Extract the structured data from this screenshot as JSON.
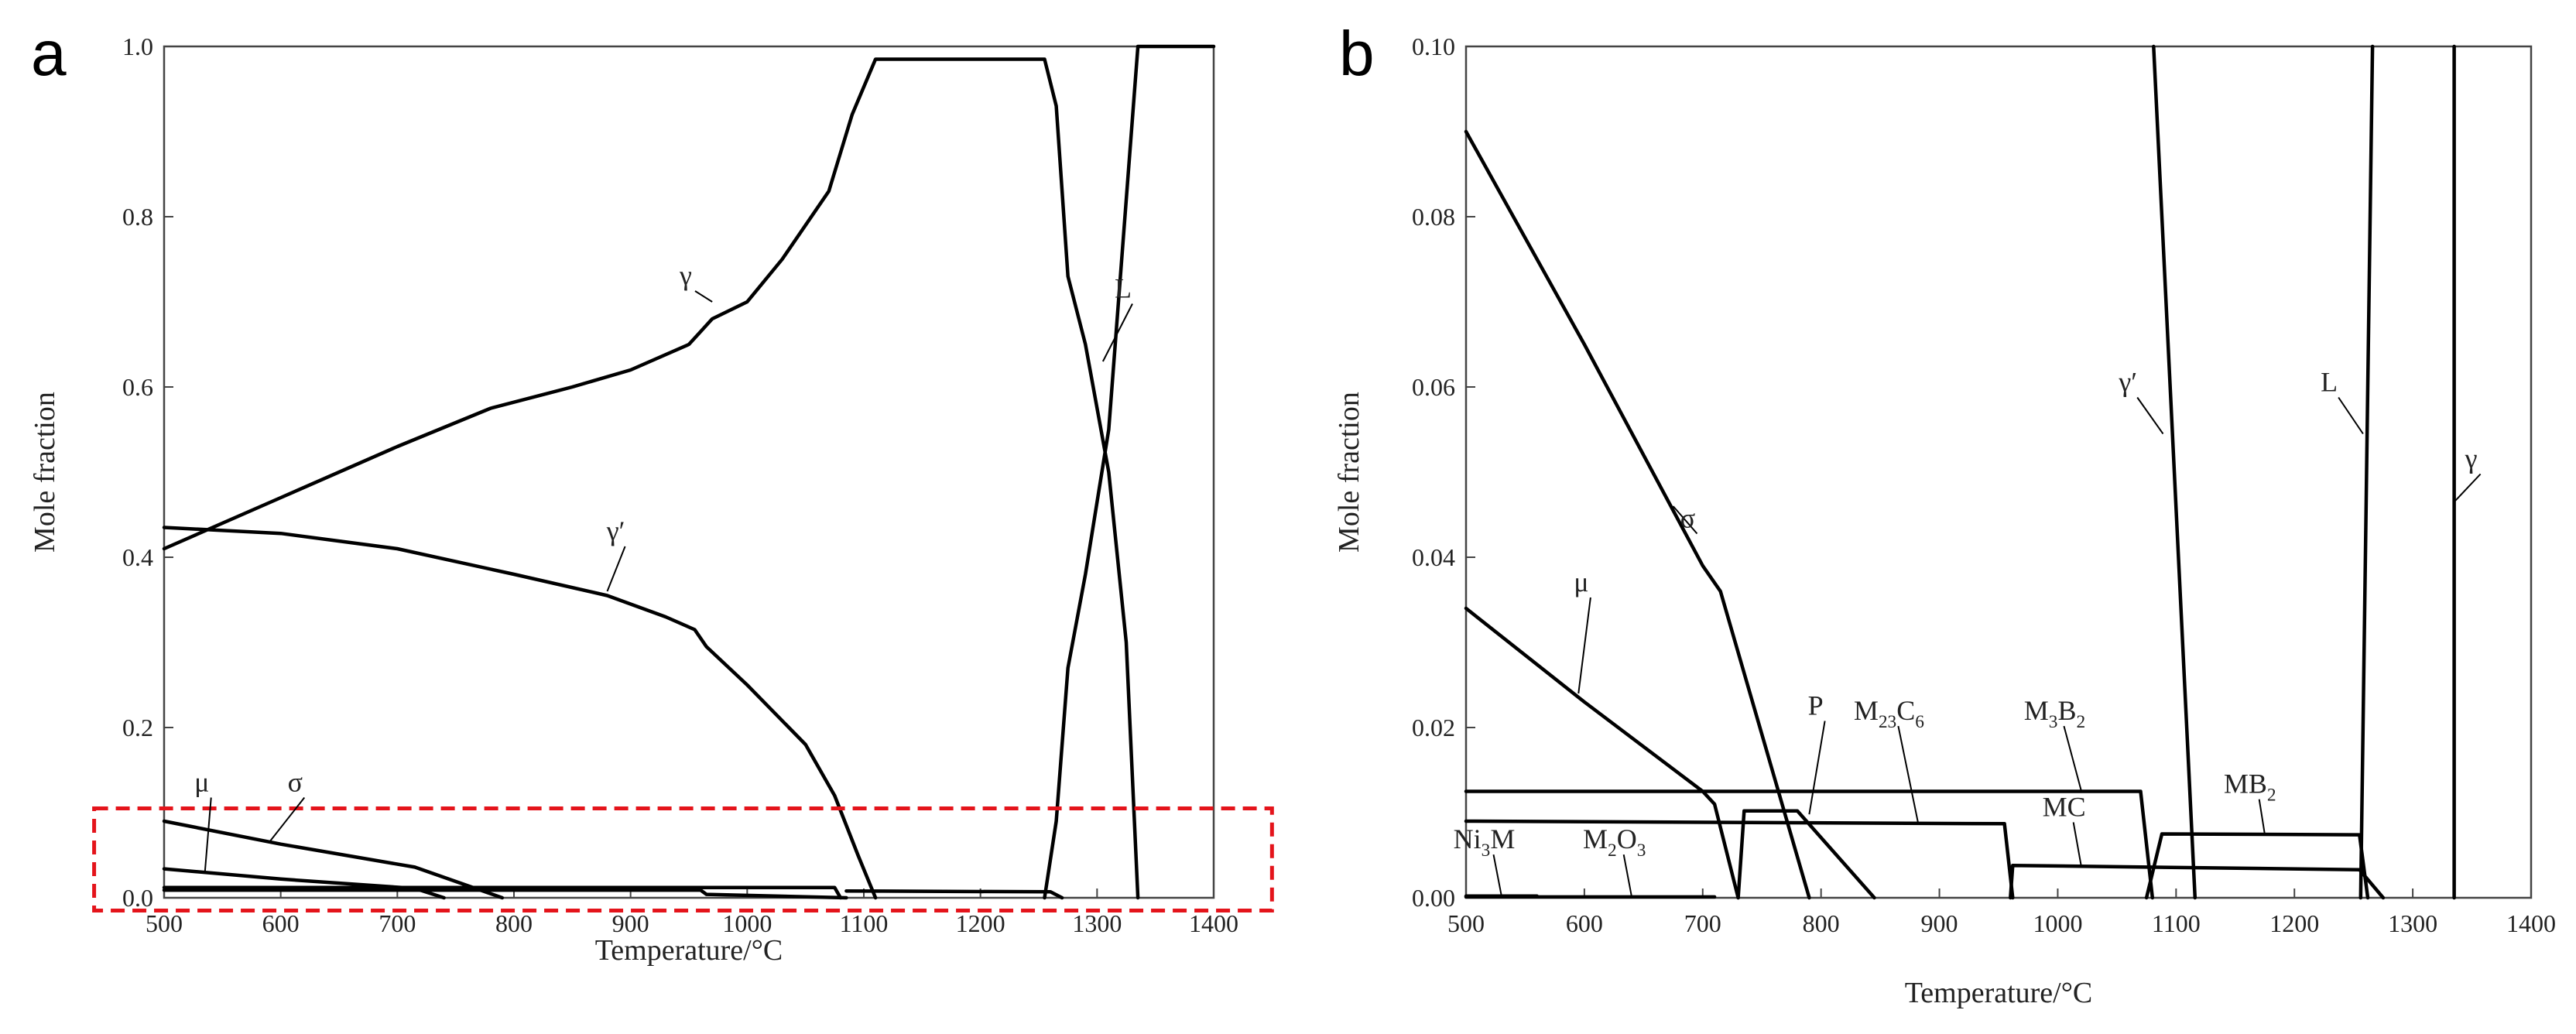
{
  "chart_data": [
    {
      "type": "line",
      "panel_label": "a",
      "xlabel": "Temperature/°C",
      "ylabel": "Mole fraction",
      "xlim": [
        500,
        1400
      ],
      "ylim": [
        0,
        1.0
      ],
      "xticks": [
        500,
        600,
        700,
        800,
        900,
        1000,
        1100,
        1200,
        1300,
        1400
      ],
      "yticks": [
        0.0,
        0.2,
        0.4,
        0.6,
        0.8,
        1.0
      ],
      "ytick_labels": [
        "0.0",
        "0.2",
        "0.4",
        "0.6",
        "0.8",
        "1.0"
      ],
      "highlight_box": {
        "x": [
          440,
          1450
        ],
        "y": [
          -0.015,
          0.105
        ],
        "color": "#e4141b",
        "style": "dashed"
      },
      "series": [
        {
          "name": "γ",
          "x": [
            500,
            600,
            700,
            780,
            850,
            900,
            950,
            960,
            970,
            1000,
            1030,
            1070,
            1090,
            1110,
            1255,
            1265,
            1275,
            1290,
            1310,
            1325,
            1335
          ],
          "y": [
            0.41,
            0.47,
            0.53,
            0.575,
            0.6,
            0.62,
            0.65,
            0.665,
            0.68,
            0.7,
            0.75,
            0.83,
            0.92,
            0.985,
            0.985,
            0.93,
            0.73,
            0.65,
            0.5,
            0.3,
            0.0
          ]
        },
        {
          "name": "γ′",
          "x": [
            500,
            600,
            700,
            800,
            880,
            930,
            955,
            965,
            1000,
            1050,
            1075,
            1095,
            1110
          ],
          "y": [
            0.435,
            0.428,
            0.41,
            0.38,
            0.355,
            0.33,
            0.315,
            0.295,
            0.25,
            0.18,
            0.12,
            0.05,
            0.0
          ]
        },
        {
          "name": "L",
          "x": [
            1255,
            1265,
            1275,
            1290,
            1310,
            1335,
            1400
          ],
          "y": [
            0.0,
            0.09,
            0.27,
            0.38,
            0.55,
            1.0,
            1.0
          ]
        },
        {
          "name": "σ",
          "x": [
            500,
            600,
            715,
            790
          ],
          "y": [
            0.09,
            0.063,
            0.036,
            0.0
          ]
        },
        {
          "name": "μ",
          "x": [
            500,
            600,
            715,
            740
          ],
          "y": [
            0.034,
            0.022,
            0.011,
            0.0
          ]
        },
        {
          "name": "M23C6",
          "x": [
            500,
            960,
            965,
            1085
          ],
          "y": [
            0.009,
            0.009,
            0.004,
            0.0
          ]
        },
        {
          "name": "M3B2",
          "x": [
            500,
            1075,
            1080
          ],
          "y": [
            0.012,
            0.012,
            0.0
          ]
        },
        {
          "name": "MB2",
          "x": [
            1085,
            1260,
            1270
          ],
          "y": [
            0.008,
            0.007,
            0.0
          ]
        }
      ],
      "annotations": [
        {
          "text": "γ",
          "series": "γ",
          "label_at": [
            950,
            0.72
          ],
          "point_at": [
            970,
            0.7
          ]
        },
        {
          "text": "γ′",
          "series": "γ′",
          "label_at": [
            890,
            0.42
          ],
          "point_at": [
            880,
            0.36
          ]
        },
        {
          "text": "L",
          "series": "L",
          "label_at": [
            1325,
            0.705
          ],
          "point_at": [
            1305,
            0.63
          ]
        },
        {
          "text": "μ",
          "series": "μ",
          "label_at": [
            535,
            0.125
          ],
          "point_at": [
            535,
            0.03
          ]
        },
        {
          "text": "σ",
          "series": "σ",
          "label_at": [
            615,
            0.125
          ],
          "point_at": [
            590,
            0.065
          ]
        }
      ]
    },
    {
      "type": "line",
      "panel_label": "b",
      "xlabel": "Temperature/°C",
      "ylabel": "Mole fraction",
      "xlim": [
        500,
        1400
      ],
      "ylim": [
        0,
        0.1
      ],
      "xticks": [
        500,
        600,
        700,
        800,
        900,
        1000,
        1100,
        1200,
        1300,
        1400
      ],
      "yticks": [
        0.0,
        0.02,
        0.04,
        0.06,
        0.08,
        0.1
      ],
      "ytick_labels": [
        "0.00",
        "0.02",
        "0.04",
        "0.06",
        "0.08",
        "0.10"
      ],
      "series": [
        {
          "name": "σ",
          "x": [
            500,
            600,
            700,
            715,
            790
          ],
          "y": [
            0.09,
            0.065,
            0.039,
            0.036,
            0.0
          ]
        },
        {
          "name": "μ",
          "x": [
            500,
            600,
            700,
            710,
            730
          ],
          "y": [
            0.034,
            0.023,
            0.0125,
            0.011,
            0.0
          ]
        },
        {
          "name": "P",
          "x": [
            730,
            735,
            780,
            845
          ],
          "y": [
            0.0,
            0.0102,
            0.0102,
            0.0
          ]
        },
        {
          "name": "M23C6",
          "x": [
            500,
            955,
            962
          ],
          "y": [
            0.009,
            0.0087,
            0.0
          ]
        },
        {
          "name": "M3B2",
          "x": [
            500,
            1070,
            1080
          ],
          "y": [
            0.0125,
            0.0125,
            0.0
          ]
        },
        {
          "name": "MC",
          "x": [
            960,
            962,
            1255,
            1275
          ],
          "y": [
            0.0,
            0.0038,
            0.0033,
            0.0
          ]
        },
        {
          "name": "MB2",
          "x": [
            1075,
            1088,
            1255,
            1262
          ],
          "y": [
            0.0,
            0.0075,
            0.0074,
            0.0
          ]
        },
        {
          "name": "γ′",
          "x": [
            1081,
            1116
          ],
          "y": [
            0.1,
            0.0
          ]
        },
        {
          "name": "L",
          "x": [
            1256,
            1266
          ],
          "y": [
            0.0,
            0.1
          ]
        },
        {
          "name": "γ",
          "x": [
            1335,
            1335
          ],
          "y": [
            0.1,
            0.0
          ]
        },
        {
          "name": "Ni3M",
          "x": [
            500,
            560
          ],
          "y": [
            0.0002,
            0.0002
          ]
        },
        {
          "name": "M2O3",
          "x": [
            500,
            710
          ],
          "y": [
            0.0001,
            0.0001
          ]
        }
      ],
      "annotations": [
        {
          "text": "σ",
          "series": "σ",
          "label_at": [
            690,
            0.0435
          ],
          "point_at": [
            675,
            0.046
          ]
        },
        {
          "text": "μ",
          "series": "μ",
          "label_at": [
            600,
            0.036
          ],
          "point_at": [
            595,
            0.024
          ]
        },
        {
          "text": "P",
          "series": "P",
          "label_at": [
            798,
            0.0215
          ],
          "point_at": [
            790,
            0.0098
          ]
        },
        {
          "text": "M",
          "sub1": "23",
          "mid": "C",
          "sub2": "6",
          "series": "M23C6",
          "label_at": [
            860,
            0.0209
          ],
          "point_at": [
            882,
            0.0088
          ]
        },
        {
          "text": "M",
          "sub1": "3",
          "mid": "B",
          "sub2": "2",
          "series": "M3B2",
          "label_at": [
            1000,
            0.0209
          ],
          "point_at": [
            1020,
            0.0125
          ]
        },
        {
          "text": "MC",
          "series": "MC",
          "label_at": [
            1008,
            0.0096
          ],
          "point_at": [
            1020,
            0.0036
          ]
        },
        {
          "text": "M",
          "sub1": "",
          "mid": "B",
          "sub2": "2",
          "series": "MB2",
          "label_at": [
            1165,
            0.0123
          ],
          "point_at": [
            1175,
            0.0074
          ]
        },
        {
          "text": "γ′",
          "series": "γ′",
          "label_at": [
            1062,
            0.0595
          ],
          "point_at": [
            1089,
            0.0545
          ]
        },
        {
          "text": "L",
          "series": "L",
          "label_at": [
            1232,
            0.0595
          ],
          "point_at": [
            1258,
            0.0545
          ]
        },
        {
          "text": "γ",
          "series": "γ",
          "label_at": [
            1352,
            0.0505
          ],
          "point_at": [
            1335,
            0.0465
          ]
        },
        {
          "text": "Ni",
          "sub1": "3",
          "mid": "M",
          "sub2": "",
          "series": "Ni3M",
          "label_at": [
            518,
            0.0058
          ],
          "point_at": [
            530,
            0.0002
          ]
        },
        {
          "text": "M",
          "sub1": "2",
          "mid": "O",
          "sub2": "3",
          "series": "M2O3",
          "label_at": [
            628,
            0.0058
          ],
          "point_at": [
            640,
            0.0001
          ]
        }
      ]
    }
  ]
}
